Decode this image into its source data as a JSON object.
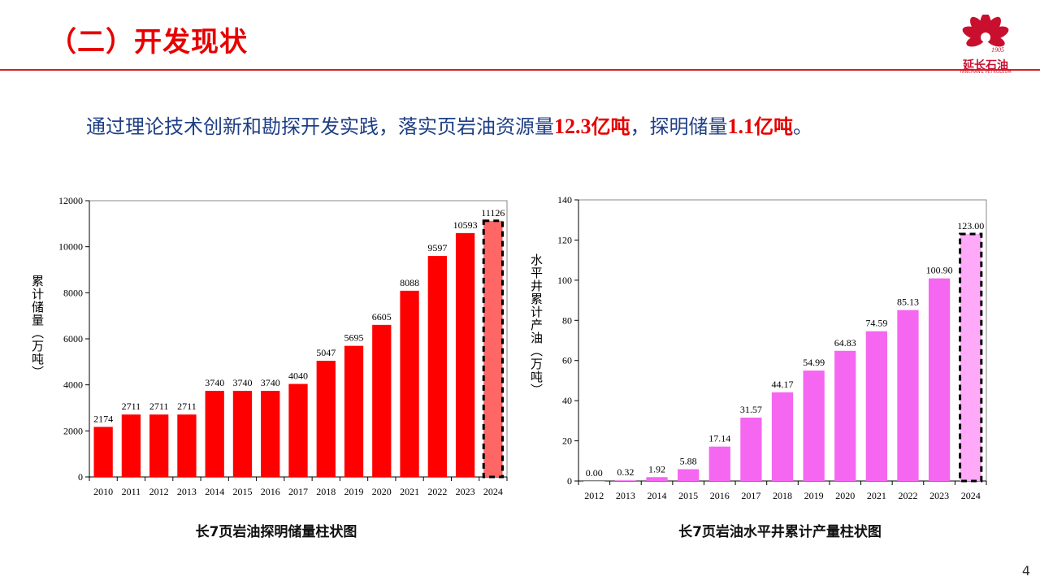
{
  "header": {
    "title": "（二）开发现状",
    "logo": {
      "year": "1905",
      "name": "延长石油",
      "sub": "YANCHANG PETROLEUM",
      "color": "#c8102e"
    }
  },
  "summary": {
    "prefix": "通过理论技术创新和勘探开发实践，落实页岩油资源量",
    "resource_value": "12.3",
    "resource_unit": "亿吨",
    "mid": "，探明储量",
    "reserve_value": "1.1",
    "reserve_unit": "亿吨",
    "suffix": "。"
  },
  "chart_data": [
    {
      "type": "bar",
      "caption": "长7页岩油探明储量柱状图",
      "ylabel": "累计储量（万吨）",
      "categories": [
        "2010",
        "2011",
        "2012",
        "2013",
        "2014",
        "2015",
        "2016",
        "2017",
        "2018",
        "2019",
        "2020",
        "2021",
        "2022",
        "2023",
        "2024"
      ],
      "values": [
        2174,
        2711,
        2711,
        2711,
        3740,
        3740,
        3740,
        4040,
        5047,
        5695,
        6605,
        8088,
        9597,
        10593,
        11126
      ],
      "value_labels": [
        "2174",
        "2711",
        "2711",
        "2711",
        "3740",
        "3740",
        "3740",
        "4040",
        "5047",
        "5695",
        "6605",
        "8088",
        "9597",
        "10593",
        "11126"
      ],
      "ylim": [
        0,
        12000
      ],
      "yticks": [
        0,
        2000,
        4000,
        6000,
        8000,
        10000,
        12000
      ],
      "color": "#ff0000",
      "highlight_color": "#ff6666",
      "highlight_last": true,
      "grid": false
    },
    {
      "type": "bar",
      "caption": "长7页岩油水平井累计产量柱状图",
      "ylabel": "水平井累计产油（万吨）",
      "categories": [
        "2012",
        "2013",
        "2014",
        "2015",
        "2016",
        "2017",
        "2018",
        "2019",
        "2020",
        "2021",
        "2022",
        "2023",
        "2024"
      ],
      "values": [
        0.0,
        0.32,
        1.92,
        5.88,
        17.14,
        31.57,
        44.17,
        54.99,
        64.83,
        74.59,
        85.13,
        100.9,
        123.0
      ],
      "value_labels": [
        "0.00",
        "0.32",
        "1.92",
        "5.88",
        "17.14",
        "31.57",
        "44.17",
        "54.99",
        "64.83",
        "74.59",
        "85.13",
        "100.90",
        "123.00"
      ],
      "ylim": [
        0,
        140
      ],
      "yticks": [
        0,
        20,
        40,
        60,
        80,
        100,
        120,
        140
      ],
      "color": "#f567f0",
      "highlight_color": "#ffaaf8",
      "highlight_last": true,
      "grid": false
    }
  ],
  "page_number": "4"
}
